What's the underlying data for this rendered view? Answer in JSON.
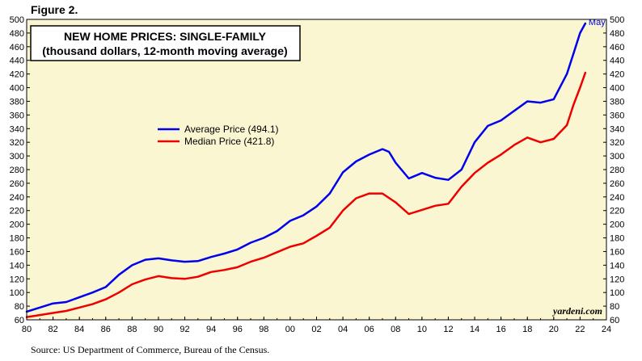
{
  "figure_label": "Figure 2.",
  "source_note": "Source: US Department of Commerce, Bureau of the Census.",
  "colors": {
    "plot_background": "#FAF6D2",
    "average_series": "#0000EE",
    "median_series": "#EE0000",
    "axis": "#000000"
  },
  "chart_data": {
    "type": "line",
    "title": "NEW HOME PRICES: SINGLE-FAMILY",
    "subtitle": "(thousand dollars, 12-month moving average)",
    "xlabel": "",
    "ylabel": "",
    "xlim": [
      1980,
      2024
    ],
    "ylim": [
      60,
      500
    ],
    "y_ticks": [
      60,
      80,
      100,
      120,
      140,
      160,
      180,
      200,
      220,
      240,
      260,
      280,
      300,
      320,
      340,
      360,
      380,
      400,
      420,
      440,
      460,
      480,
      500
    ],
    "x_ticks": [
      1980,
      1982,
      1984,
      1986,
      1988,
      1990,
      1992,
      1994,
      1996,
      1998,
      2000,
      2002,
      2004,
      2006,
      2008,
      2010,
      2012,
      2014,
      2016,
      2018,
      2020,
      2022,
      2024
    ],
    "x_tick_labels": [
      "80",
      "82",
      "84",
      "86",
      "88",
      "90",
      "92",
      "94",
      "96",
      "98",
      "00",
      "02",
      "04",
      "06",
      "08",
      "10",
      "12",
      "14",
      "16",
      "18",
      "20",
      "22",
      "24"
    ],
    "legend_position": "center-left",
    "grid": false,
    "credit": "yardeni.com",
    "end_annotation": "May",
    "series": [
      {
        "name": "Average Price (494.1)",
        "color": "#0000EE",
        "x": [
          1980,
          1981,
          1982,
          1983,
          1984,
          1985,
          1986,
          1987,
          1988,
          1989,
          1990,
          1991,
          1992,
          1993,
          1994,
          1995,
          1996,
          1997,
          1998,
          1999,
          2000,
          2001,
          2002,
          2003,
          2004,
          2005,
          2006,
          2007,
          2007.5,
          2008,
          2009,
          2010,
          2011,
          2012,
          2013,
          2014,
          2015,
          2016,
          2017,
          2018,
          2019,
          2020,
          2021,
          2021.5,
          2022,
          2022.4
        ],
        "y": [
          72,
          78,
          84,
          86,
          93,
          100,
          108,
          126,
          140,
          148,
          150,
          147,
          145,
          146,
          152,
          157,
          163,
          173,
          180,
          190,
          205,
          213,
          226,
          245,
          276,
          292,
          302,
          310,
          306,
          290,
          267,
          275,
          268,
          265,
          280,
          320,
          344,
          352,
          366,
          380,
          378,
          383,
          420,
          450,
          480,
          494.1
        ]
      },
      {
        "name": "Median Price (421.8)",
        "color": "#EE0000",
        "x": [
          1980,
          1981,
          1982,
          1983,
          1984,
          1985,
          1986,
          1987,
          1988,
          1989,
          1990,
          1991,
          1992,
          1993,
          1994,
          1995,
          1996,
          1997,
          1998,
          1999,
          2000,
          2001,
          2002,
          2003,
          2004,
          2005,
          2006,
          2007,
          2008,
          2009,
          2010,
          2011,
          2012,
          2013,
          2014,
          2015,
          2016,
          2017,
          2018,
          2019,
          2020,
          2021,
          2021.5,
          2022,
          2022.4
        ],
        "y": [
          64,
          67,
          70,
          73,
          78,
          83,
          90,
          100,
          112,
          119,
          124,
          121,
          120,
          123,
          130,
          133,
          137,
          145,
          151,
          159,
          167,
          172,
          183,
          195,
          220,
          238,
          245,
          245,
          232,
          215,
          221,
          227,
          230,
          255,
          275,
          290,
          302,
          316,
          327,
          320,
          325,
          345,
          375,
          400,
          421.8
        ]
      }
    ]
  }
}
